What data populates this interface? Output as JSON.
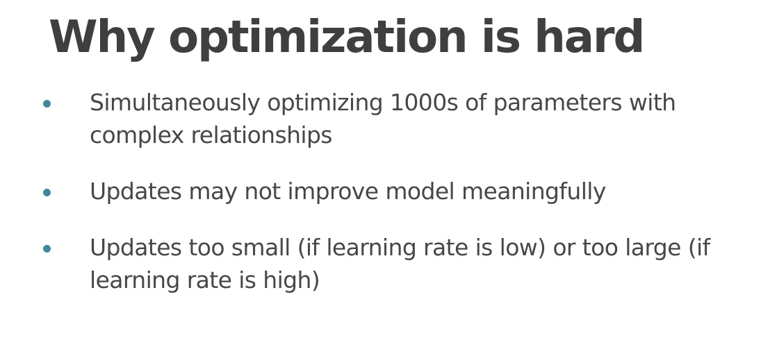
{
  "slide": {
    "title": "Why optimization is hard",
    "accent_color": "#3d8a99",
    "bullets": [
      {
        "text": "Simultaneously optimizing 1000s of parameters with complex relationships"
      },
      {
        "text": "Updates may not improve model meaningfully"
      },
      {
        "text": "Updates too small (if learning rate is low) or too large (if learning rate is high)"
      }
    ]
  }
}
